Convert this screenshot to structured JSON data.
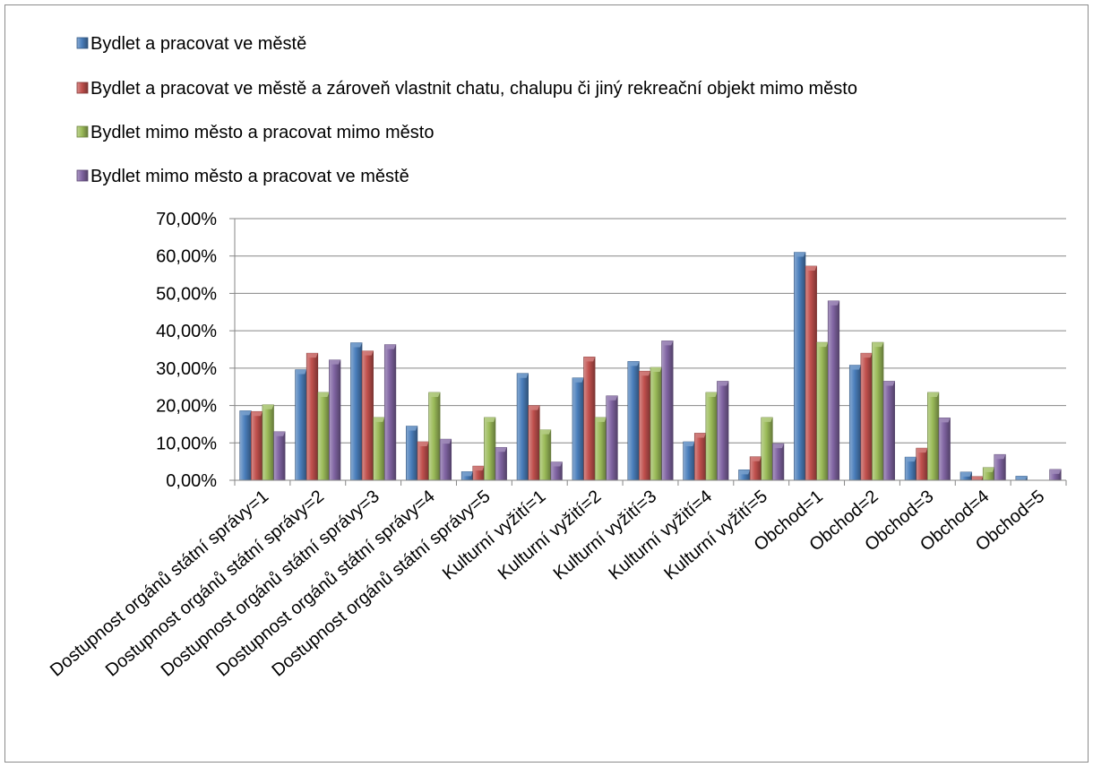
{
  "chart_data": {
    "type": "bar",
    "title": "",
    "xlabel": "",
    "ylabel": "",
    "ylim": [
      0,
      70
    ],
    "y_ticks": [
      "0,00%",
      "10,00%",
      "20,00%",
      "30,00%",
      "40,00%",
      "50,00%",
      "60,00%",
      "70,00%"
    ],
    "y_tick_values": [
      0,
      10,
      20,
      30,
      40,
      50,
      60,
      70
    ],
    "grid": true,
    "legend_position": "top-left",
    "categories": [
      "Dostupnost orgánů státní správy=1",
      "Dostupnost orgánů státní správy=2",
      "Dostupnost orgánů státní správy=3",
      "Dostupnost orgánů státní správy=4",
      "Dostupnost orgánů státní správy=5",
      "Kulturní vyžití=1",
      "Kulturní vyžití=2",
      "Kulturní vyžití=3",
      "Kulturní vyžití=4",
      "Kulturní vyžití=5",
      "Obchod=1",
      "Obchod=2",
      "Obchod=3",
      "Obchod=4",
      "Obchod=5"
    ],
    "series": [
      {
        "name": "Bydlet a pracovat ve městě",
        "color": "#4a7ebb",
        "values": [
          18.6,
          29.6,
          36.8,
          14.5,
          2.3,
          28.6,
          27.4,
          31.8,
          10.3,
          2.8,
          61.0,
          30.8,
          6.2,
          2.2,
          1.1
        ]
      },
      {
        "name": "Bydlet a pracovat ve městě a zároveň vlastnit chatu, chalupu či jiný rekreační objekt mimo město",
        "color": "#c0504d",
        "values": [
          18.4,
          34.0,
          34.6,
          10.3,
          3.8,
          20.0,
          33.0,
          29.2,
          12.6,
          6.3,
          57.3,
          34.0,
          8.6,
          1.0,
          0
        ]
      },
      {
        "name": "Bydlet mimo město a pracovat mimo město",
        "color": "#9bbb59",
        "values": [
          20.2,
          23.5,
          16.8,
          23.5,
          16.8,
          13.5,
          16.8,
          30.2,
          23.5,
          16.8,
          36.9,
          36.9,
          23.5,
          3.4,
          0
        ]
      },
      {
        "name": "Bydlet mimo město a pracovat ve městě",
        "color": "#8064a2",
        "values": [
          13.0,
          32.2,
          36.3,
          11.0,
          8.8,
          4.9,
          22.6,
          37.3,
          26.5,
          9.8,
          48.0,
          26.5,
          16.7,
          6.9,
          2.9
        ]
      }
    ]
  }
}
